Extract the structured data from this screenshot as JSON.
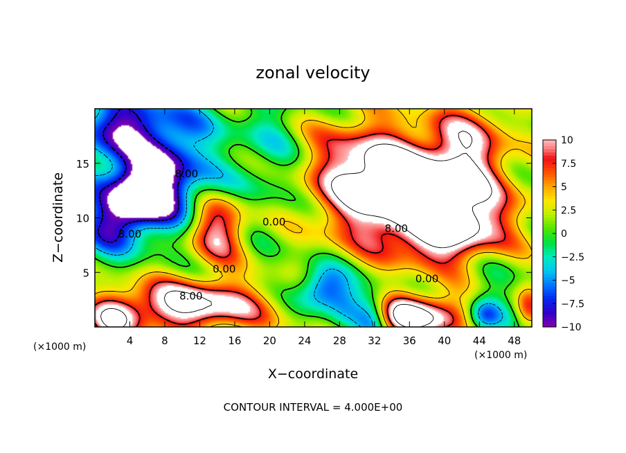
{
  "chart_data": {
    "type": "heatmap",
    "title": "zonal velocity",
    "xlabel": "X−coordinate",
    "ylabel": "Z−coordinate",
    "x_unit": "(×1000 m)",
    "z_unit": "(×1000 m)",
    "footer": "CONTOUR INTERVAL = 4.000E+00",
    "xlim": [
      0,
      50
    ],
    "ylim": [
      0,
      20
    ],
    "x_ticks": [
      4,
      8,
      12,
      16,
      20,
      24,
      28,
      32,
      36,
      40,
      44,
      48
    ],
    "y_ticks": [
      5,
      10,
      15
    ],
    "colorbar": {
      "min": -10,
      "max": 10,
      "ticks": [
        "10",
        "7.5",
        "5",
        "2.5",
        "0",
        "−2.5",
        "−5",
        "−7.5",
        "−10"
      ]
    },
    "contour_interval": 4.0,
    "contour_labels": [
      {
        "text": "8.00",
        "x": 10.5,
        "z": 13.7
      },
      {
        "text": "8.00",
        "x": 4.0,
        "z": 8.2
      },
      {
        "text": "0.00",
        "x": 20.5,
        "z": 9.3
      },
      {
        "text": "0.00",
        "x": 14.8,
        "z": 5.0
      },
      {
        "text": "8.00",
        "x": 34.5,
        "z": 8.7
      },
      {
        "text": "0.00",
        "x": 38.0,
        "z": 4.1
      },
      {
        "text": "8.00",
        "x": 11.0,
        "z": 2.5
      }
    ],
    "field_blobs": [
      {
        "x": 5,
        "z": 12,
        "sx": 4.5,
        "sz": 2.2,
        "a": -13,
        "rot": 0.62
      },
      {
        "x": 5,
        "z": 18.5,
        "sx": 5,
        "sz": 2,
        "a": -8
      },
      {
        "x": 11,
        "z": 11.5,
        "sx": 4.5,
        "sz": 2.5,
        "a": -7
      },
      {
        "x": 2,
        "z": 16,
        "sx": 3,
        "sz": 4,
        "a": -4
      },
      {
        "x": 14,
        "z": 9.5,
        "sx": 2.5,
        "sz": 2.3,
        "a": 12
      },
      {
        "x": 20,
        "z": 17,
        "sx": 3,
        "sz": 4,
        "a": -3
      },
      {
        "x": 37,
        "z": 12.5,
        "sx": 7,
        "sz": 3.3,
        "a": 15,
        "rot": -0.25
      },
      {
        "x": 40,
        "z": 8.5,
        "sx": 4,
        "sz": 2,
        "a": 7
      },
      {
        "x": 43,
        "z": 17,
        "sx": 3,
        "sz": 3,
        "a": 7
      },
      {
        "x": 30,
        "z": 12,
        "sx": 4,
        "sz": 4,
        "a": 5
      },
      {
        "x": 46,
        "z": 5,
        "sx": 3,
        "sz": 3,
        "a": -2
      },
      {
        "x": 11,
        "z": 2,
        "sx": 6,
        "sz": 1.6,
        "a": 12
      },
      {
        "x": 2,
        "z": 0.5,
        "sx": 2,
        "sz": 1.5,
        "a": 8
      },
      {
        "x": 36,
        "z": 1,
        "sx": 5,
        "sz": 1.4,
        "a": 13
      },
      {
        "x": 26,
        "z": 3.5,
        "sx": 2,
        "sz": 1.5,
        "a": -9
      },
      {
        "x": 29,
        "z": 1.5,
        "sx": 1.8,
        "sz": 1.6,
        "a": -7
      },
      {
        "x": 32,
        "z": 1,
        "sx": 1.5,
        "sz": 1.5,
        "a": -10
      },
      {
        "x": 44.5,
        "z": 1,
        "sx": 1.5,
        "sz": 1.2,
        "a": -9
      },
      {
        "x": 49.5,
        "z": 1.5,
        "sx": 1,
        "sz": 1.5,
        "a": 5
      }
    ],
    "base_value": 1
  }
}
